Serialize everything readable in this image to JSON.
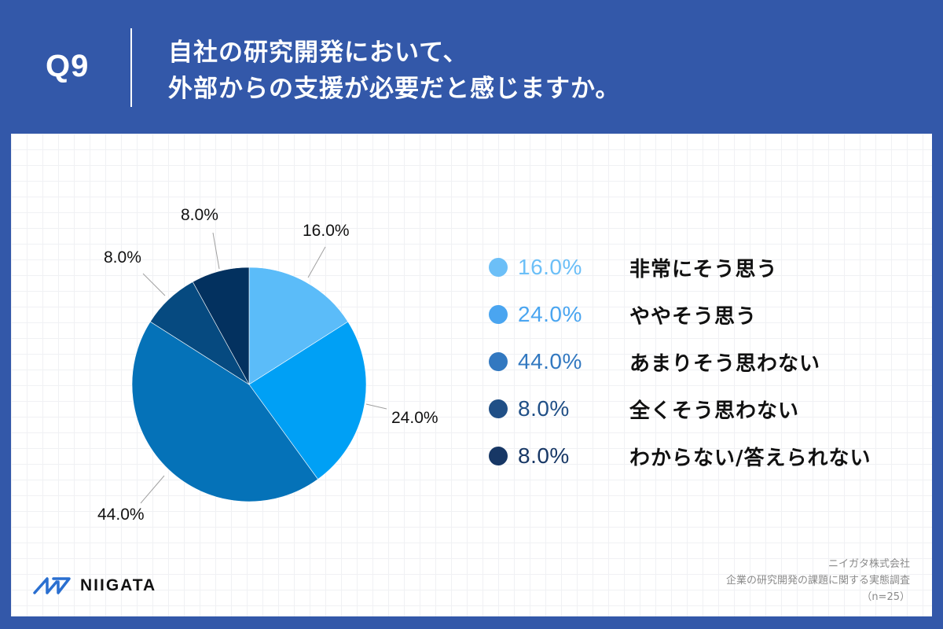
{
  "header": {
    "question_number": "Q9",
    "title_line1": "自社の研究開発において、",
    "title_line2": "外部からの支援が必要だと感じますか。"
  },
  "colors": {
    "background": "#3358a9",
    "panel": "#ffffff",
    "grid": "#f0f1f4"
  },
  "chart_data": {
    "type": "pie",
    "title": "自社の研究開発において、外部からの支援が必要だと感じますか。",
    "start_angle": "12 o'clock",
    "direction": "clockwise",
    "n": 25,
    "categories": [
      "非常にそう思う",
      "ややそう思う",
      "あまりそう思わない",
      "全くそう思わない",
      "わからない/答えられない"
    ],
    "values": [
      16.0,
      24.0,
      44.0,
      8.0,
      8.0
    ],
    "labels": [
      "16.0%",
      "24.0%",
      "44.0%",
      "8.0%",
      "8.0%"
    ],
    "slice_colors": [
      "#5bbcf9",
      "#00a0f5",
      "#0572b8",
      "#064a80",
      "#03315f"
    ],
    "legend_colors": [
      "#6cbff7",
      "#4aa5f0",
      "#3278c0",
      "#204f86",
      "#173765"
    ],
    "legend_position": "right"
  },
  "legend": {
    "items": [
      {
        "pct": "16.0%",
        "label": "非常にそう思う"
      },
      {
        "pct": "24.0%",
        "label": "ややそう思う"
      },
      {
        "pct": "44.0%",
        "label": "あまりそう思わない"
      },
      {
        "pct": "8.0%",
        "label": "全くそう思わない"
      },
      {
        "pct": "8.0%",
        "label": "わからない/答えられない"
      }
    ]
  },
  "footer": {
    "logo_text": "NIIGATA",
    "source_company": "ニイガタ株式会社",
    "source_survey": "企業の研究開発の課題に関する実態調査",
    "source_n": "（n=25）"
  }
}
